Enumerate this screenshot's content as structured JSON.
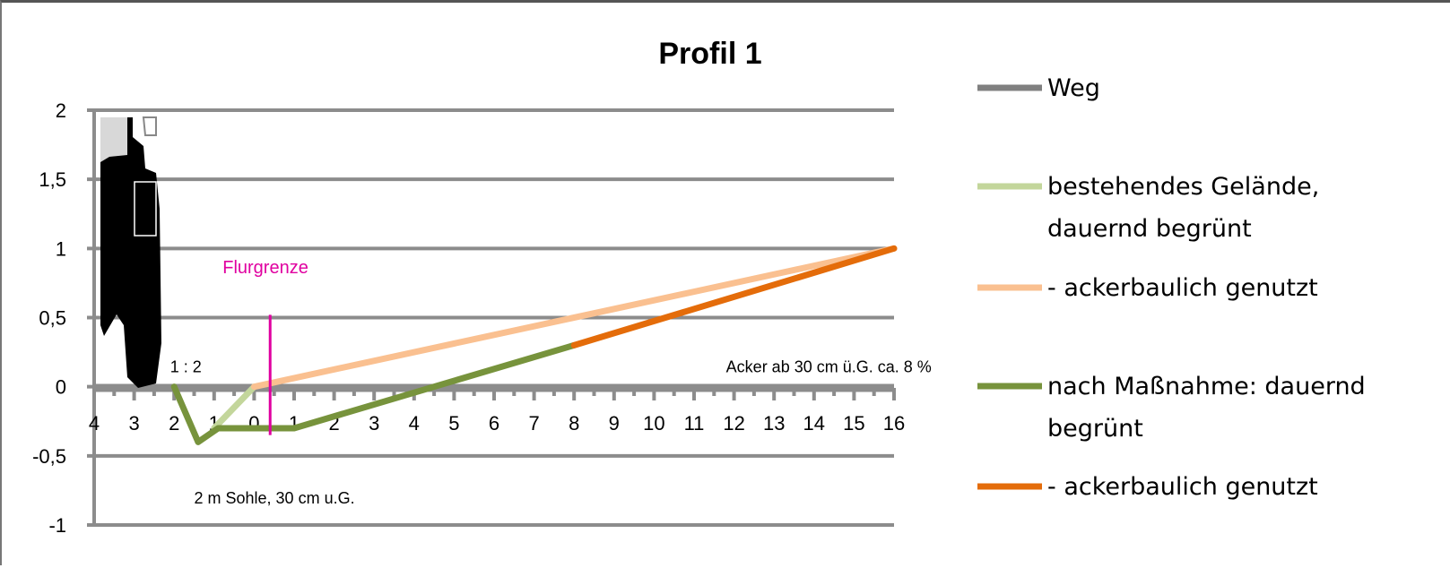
{
  "chart_data": {
    "type": "line",
    "title": "Profil 1",
    "xlabel": "",
    "ylabel": "",
    "xlim": [
      -4,
      16
    ],
    "ylim": [
      -1,
      2
    ],
    "x_tick_labels": [
      "4",
      "3",
      "2",
      "1",
      "0",
      "1",
      "2",
      "3",
      "4",
      "5",
      "6",
      "7",
      "8",
      "9",
      "10",
      "11",
      "12",
      "13",
      "14",
      "15",
      "16"
    ],
    "x_tick_values": [
      -4,
      -3,
      -2,
      -1,
      0,
      1,
      2,
      3,
      4,
      5,
      6,
      7,
      8,
      9,
      10,
      11,
      12,
      13,
      14,
      15,
      16
    ],
    "y_ticks": [
      2,
      1.5,
      1,
      0.5,
      0,
      -0.5,
      -1
    ],
    "y_tick_labels": [
      "2",
      "1,5",
      "1",
      "0,5",
      "0",
      "-0,5",
      "-1"
    ],
    "grid": true,
    "legend_position": "right",
    "series": [
      {
        "name": "Weg",
        "color": "#808080",
        "x": [],
        "y": []
      },
      {
        "name": "bestehendes Gelände, dauernd begrünt",
        "color": "#c3d69b",
        "x": [
          -1,
          0
        ],
        "y": [
          -0.3,
          0
        ]
      },
      {
        "name": "- ackerbaulich genutzt",
        "color": "#fac090",
        "x": [
          0,
          16
        ],
        "y": [
          0,
          1
        ]
      },
      {
        "name": "nach Maßnahme: dauernd begrünt",
        "color": "#77933c",
        "x": [
          -2,
          -1.4,
          -0.9,
          1,
          8
        ],
        "y": [
          0,
          -0.4,
          -0.3,
          -0.3,
          0.3
        ]
      },
      {
        "name": "- ackerbaulich genutzt",
        "color": "#e46c0a",
        "x": [
          8,
          16
        ],
        "y": [
          0.3,
          1
        ]
      }
    ],
    "vline": {
      "label": "Flurgrenze",
      "x": 0.4,
      "y_range": [
        -0.35,
        0.52
      ],
      "color": "#e000a0"
    },
    "annotations": [
      {
        "text": "1 : 2",
        "x": -2.1,
        "y": 0.15
      },
      {
        "text": "Acker ab 30 cm ü.G.   ca. 8 %",
        "x": 11.8,
        "y": 0.15
      },
      {
        "text": "2 m Sohle, 30 cm u.G.",
        "x": -1.5,
        "y": -0.8
      }
    ]
  }
}
